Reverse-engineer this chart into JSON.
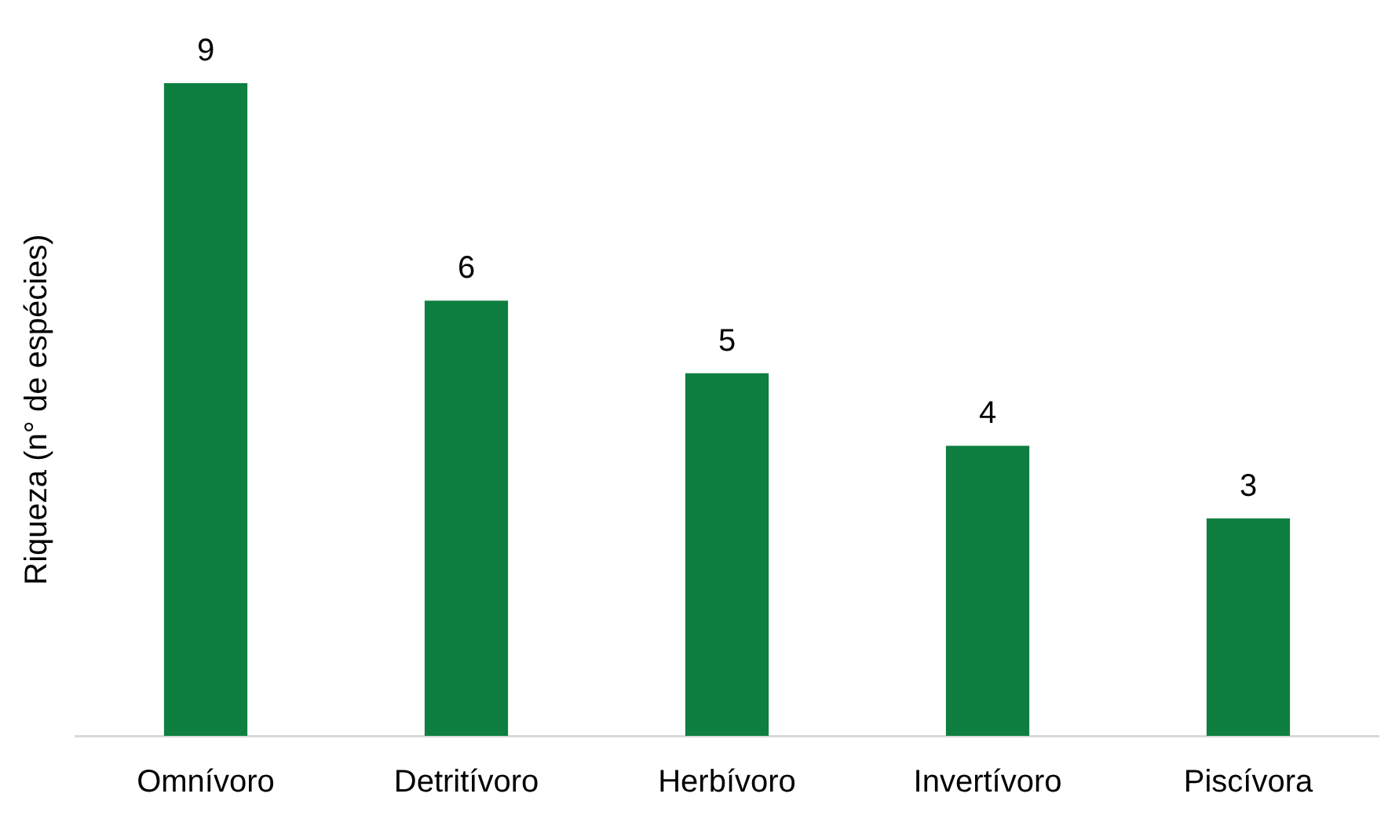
{
  "chart_data": {
    "type": "bar",
    "ylabel": "Riqueza (n° de espécies)",
    "categories": [
      "Omnívoro",
      "Detritívoro",
      "Herbívoro",
      "Invertívoro",
      "Piscívora"
    ],
    "values": [
      9,
      6,
      5,
      4,
      3
    ],
    "color": "#0e7f40",
    "data_labels": true,
    "grid": false,
    "legend": false
  }
}
